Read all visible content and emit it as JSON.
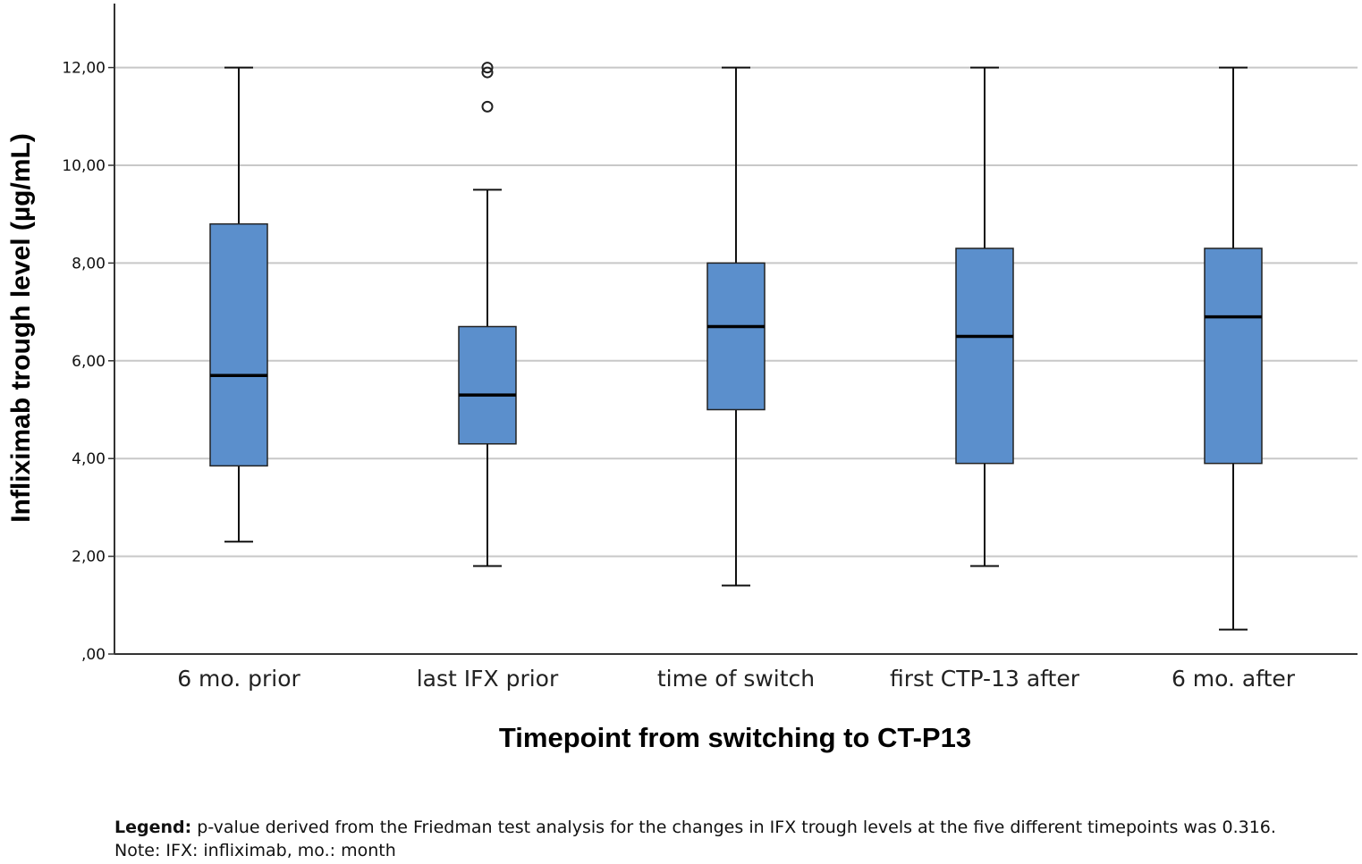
{
  "chart_data": {
    "type": "box",
    "xlabel": "Timepoint from switching to CT-P13",
    "ylabel": "Infliximab trough level (µg/mL)",
    "ylim": [
      0,
      13
    ],
    "yticks": [
      0,
      2,
      4,
      6,
      8,
      10,
      12
    ],
    "ytick_labels": [
      ",00",
      "2,00",
      "4,00",
      "6,00",
      "8,00",
      "10,00",
      "12,00"
    ],
    "grid": true,
    "box_color": "#5b8fcc",
    "categories": [
      "6 mo. prior",
      "last IFX prior",
      "time of switch",
      "first CTP-13 after",
      "6 mo. after"
    ],
    "boxes": [
      {
        "whisker_low": 2.3,
        "q1": 3.85,
        "median": 5.7,
        "q3": 8.8,
        "whisker_high": 12.0,
        "outliers": []
      },
      {
        "whisker_low": 1.8,
        "q1": 4.3,
        "median": 5.3,
        "q3": 6.7,
        "whisker_high": 9.5,
        "outliers": [
          11.2,
          11.9,
          12.0
        ]
      },
      {
        "whisker_low": 1.4,
        "q1": 5.0,
        "median": 6.7,
        "q3": 8.0,
        "whisker_high": 12.0,
        "outliers": []
      },
      {
        "whisker_low": 1.8,
        "q1": 3.9,
        "median": 6.5,
        "q3": 8.3,
        "whisker_high": 12.0,
        "outliers": []
      },
      {
        "whisker_low": 0.5,
        "q1": 3.9,
        "median": 6.9,
        "q3": 8.3,
        "whisker_high": 12.0,
        "outliers": []
      }
    ]
  },
  "legend": {
    "label": "Legend:",
    "text": " p-value derived from the Friedman test analysis for the changes in IFX trough levels at the five different timepoints was 0.316.",
    "note": "Note: IFX: infliximab, mo.: month"
  }
}
